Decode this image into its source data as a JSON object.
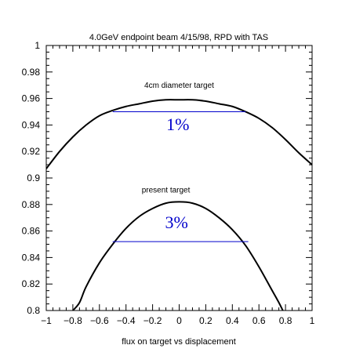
{
  "chart_data": {
    "type": "line",
    "title": "4.0GeV endpoint beam 4/15/98, RPD with TAS",
    "xlabel": "flux on target vs displacement",
    "ylabel": "",
    "xlim": [
      -1,
      1
    ],
    "ylim": [
      0.8,
      1.0
    ],
    "grid": false,
    "x_ticks": [
      -1,
      -0.8,
      -0.6,
      -0.4,
      -0.2,
      0,
      0.2,
      0.4,
      0.6,
      0.8,
      1
    ],
    "x_tick_labels": [
      "−1",
      "−0.8",
      "−0.6",
      "−0.4",
      "−0.2",
      "0",
      "0.2",
      "0.4",
      "0.6",
      "0.8",
      "1"
    ],
    "y_ticks": [
      0.8,
      0.82,
      0.84,
      0.86,
      0.88,
      0.9,
      0.92,
      0.94,
      0.96,
      0.98,
      1.0
    ],
    "y_tick_labels": [
      "0.8",
      "0.82",
      "0.84",
      "0.86",
      "0.88",
      "0.9",
      "0.92",
      "0.94",
      "0.96",
      "0.98",
      "1"
    ],
    "series": [
      {
        "name": "4cm diameter target",
        "color": "#000000",
        "x": [
          -1.0,
          -0.9,
          -0.8,
          -0.7,
          -0.6,
          -0.5,
          -0.4,
          -0.3,
          -0.2,
          -0.1,
          0.0,
          0.1,
          0.2,
          0.3,
          0.4,
          0.5,
          0.6,
          0.7,
          0.8,
          0.9,
          1.0
        ],
        "y": [
          0.907,
          0.92,
          0.931,
          0.94,
          0.947,
          0.951,
          0.954,
          0.956,
          0.958,
          0.959,
          0.959,
          0.959,
          0.958,
          0.956,
          0.954,
          0.95,
          0.945,
          0.938,
          0.929,
          0.919,
          0.91
        ]
      },
      {
        "name": "present target",
        "color": "#000000",
        "x": [
          -0.8,
          -0.75,
          -0.7,
          -0.6,
          -0.5,
          -0.4,
          -0.3,
          -0.2,
          -0.1,
          0.0,
          0.1,
          0.2,
          0.3,
          0.4,
          0.5,
          0.6,
          0.7,
          0.75,
          0.78
        ],
        "y": [
          0.8,
          0.806,
          0.818,
          0.836,
          0.85,
          0.862,
          0.871,
          0.877,
          0.881,
          0.882,
          0.881,
          0.877,
          0.87,
          0.861,
          0.849,
          0.833,
          0.815,
          0.806,
          0.8
        ]
      }
    ],
    "annotations": [
      {
        "text": "4cm diameter target",
        "x": 0.0,
        "y": 0.968,
        "kind": "label"
      },
      {
        "text": "1%",
        "x": -0.01,
        "y": 0.936,
        "kind": "percent"
      },
      {
        "text": "present target",
        "x": -0.1,
        "y": 0.889,
        "kind": "label"
      },
      {
        "text": "3%",
        "x": -0.02,
        "y": 0.862,
        "kind": "percent"
      }
    ],
    "reference_lines": [
      {
        "x1": -0.5,
        "x2": 0.5,
        "y": 0.95,
        "color": "#0000cc"
      },
      {
        "x1": -0.5,
        "x2": 0.52,
        "y": 0.852,
        "color": "#0000cc"
      }
    ]
  }
}
